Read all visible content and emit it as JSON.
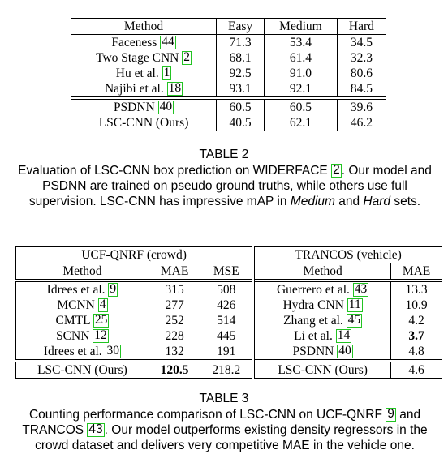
{
  "table2": {
    "headers": [
      "Method",
      "Easy",
      "Medium",
      "Hard"
    ],
    "rows": [
      {
        "method": "Faceness",
        "cite": "44",
        "easy": "71.3",
        "medium": "53.4",
        "hard": "34.5"
      },
      {
        "method": "Two Stage CNN",
        "cite": "2",
        "easy": "68.1",
        "medium": "61.4",
        "hard": "32.3"
      },
      {
        "method": "Hu et al.",
        "cite": "1",
        "easy": "92.5",
        "medium": "91.0",
        "hard": "80.6"
      },
      {
        "method": "Najibi et al.",
        "cite": "18",
        "easy": "93.1",
        "medium": "92.1",
        "hard": "84.5"
      },
      {
        "method": "PSDNN",
        "cite": "40",
        "easy": "60.5",
        "medium": "60.5",
        "hard": "39.6"
      },
      {
        "method": "LSC-CNN (Ours)",
        "cite": "",
        "easy": "40.5",
        "medium": "62.1",
        "hard": "46.2"
      }
    ],
    "caption_title": "TABLE 2",
    "caption": {
      "p1": "Evaluation of LSC-CNN box prediction on WIDERFACE ",
      "cite1": "2",
      "p2": ". Our model and PSDNN are trained on pseudo ground truths, while others use full supervision. LSC-CNN has impressive mAP in ",
      "em1": "Medium",
      "p3": " and ",
      "em2": "Hard",
      "p4": " sets."
    }
  },
  "table3": {
    "group_left": "UCF-QNRF (crowd)",
    "group_right": "TRANCOS (vehicle)",
    "headers": [
      "Method",
      "MAE",
      "MSE",
      "Method",
      "MAE"
    ],
    "rows": [
      {
        "m1": "Idrees et al.",
        "c1": "9",
        "mae1": "315",
        "mse1": "508",
        "m2": "Guerrero et al.",
        "c2": "43",
        "mae2": "13.3"
      },
      {
        "m1": "MCNN",
        "c1": "4",
        "mae1": "277",
        "mse1": "426",
        "m2": "Hydra CNN",
        "c2": "11",
        "mae2": "10.9"
      },
      {
        "m1": "CMTL",
        "c1": "25",
        "mae1": "252",
        "mse1": "514",
        "m2": "Zhang et al.",
        "c2": "45",
        "mae2": "4.2"
      },
      {
        "m1": "SCNN",
        "c1": "12",
        "mae1": "228",
        "mse1": "445",
        "m2": "Li et al.",
        "c2": "14",
        "mae2": "3.7"
      },
      {
        "m1": "Idrees et al.",
        "c1": "30",
        "mae1": "132",
        "mse1": "191",
        "m2": "PSDNN",
        "c2": "40",
        "mae2": "4.8"
      },
      {
        "m1": "LSC-CNN (Ours)",
        "c1": "",
        "mae1": "120.5",
        "mse1": "218.2",
        "m2": "LSC-CNN (Ours)",
        "c2": "",
        "mae2": "4.6"
      }
    ],
    "caption_title": "TABLE 3",
    "caption": {
      "p1": "Counting performance comparison of LSC-CNN on UCF-QNRF ",
      "cite1": "9",
      "p2": " and TRANCOS ",
      "cite2": "43",
      "p3": ". Our model outperforms existing density regressors in the crowd dataset and delivers very competitive MAE in the vehicle one."
    }
  },
  "colors": {
    "citation_box": "#22c322"
  }
}
